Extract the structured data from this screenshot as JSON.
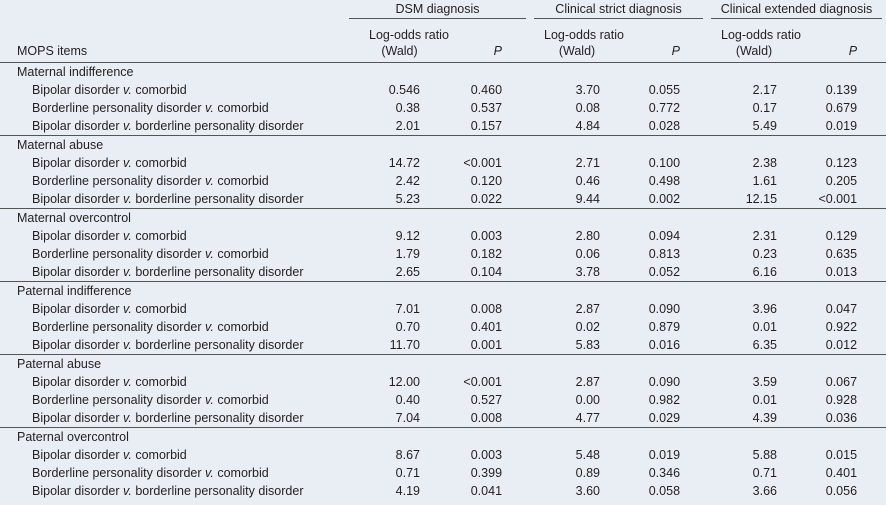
{
  "header": {
    "row_label": "MOPS items",
    "groups": [
      {
        "title": "DSM diagnosis",
        "col1": [
          "Log-odds ratio",
          "(Wald)"
        ],
        "col2": "P"
      },
      {
        "title": "Clinical strict diagnosis",
        "col1": [
          "Log-odds ratio",
          "(Wald)"
        ],
        "col2": "P"
      },
      {
        "title": "Clinical extended diagnosis",
        "col1": [
          "Log-odds ratio",
          "(Wald)"
        ],
        "col2": "P"
      }
    ]
  },
  "sections": [
    {
      "title": "Maternal indifference",
      "rows": [
        {
          "comparison": [
            "Bipolar disorder",
            "v.",
            "comorbid"
          ],
          "values": [
            "0.546",
            "0.460",
            "3.70",
            "0.055",
            "2.17",
            "0.139"
          ]
        },
        {
          "comparison": [
            "Borderline personality disorder",
            "v.",
            "comorbid"
          ],
          "values": [
            "0.38",
            "0.537",
            "0.08",
            "0.772",
            "0.17",
            "0.679"
          ]
        },
        {
          "comparison": [
            "Bipolar disorder",
            "v.",
            "borderline personality disorder"
          ],
          "values": [
            "2.01",
            "0.157",
            "4.84",
            "0.028",
            "5.49",
            "0.019"
          ]
        }
      ]
    },
    {
      "title": "Maternal abuse",
      "rows": [
        {
          "comparison": [
            "Bipolar disorder",
            "v.",
            "comorbid"
          ],
          "values": [
            "14.72",
            "<0.001",
            "2.71",
            "0.100",
            "2.38",
            "0.123"
          ]
        },
        {
          "comparison": [
            "Borderline personality disorder",
            "v.",
            "comorbid"
          ],
          "values": [
            "2.42",
            "0.120",
            "0.46",
            "0.498",
            "1.61",
            "0.205"
          ]
        },
        {
          "comparison": [
            "Bipolar disorder",
            "v.",
            "borderline personality disorder"
          ],
          "values": [
            "5.23",
            "0.022",
            "9.44",
            "0.002",
            "12.15",
            "<0.001"
          ]
        }
      ]
    },
    {
      "title": "Maternal overcontrol",
      "rows": [
        {
          "comparison": [
            "Bipolar disorder",
            "v.",
            "comorbid"
          ],
          "values": [
            "9.12",
            "0.003",
            "2.80",
            "0.094",
            "2.31",
            "0.129"
          ]
        },
        {
          "comparison": [
            "Borderline personality disorder",
            "v.",
            "comorbid"
          ],
          "values": [
            "1.79",
            "0.182",
            "0.06",
            "0.813",
            "0.23",
            "0.635"
          ]
        },
        {
          "comparison": [
            "Bipolar disorder",
            "v.",
            "borderline personality disorder"
          ],
          "values": [
            "2.65",
            "0.104",
            "3.78",
            "0.052",
            "6.16",
            "0.013"
          ]
        }
      ]
    },
    {
      "title": "Paternal indifference",
      "rows": [
        {
          "comparison": [
            "Bipolar disorder",
            "v.",
            "comorbid"
          ],
          "values": [
            "7.01",
            "0.008",
            "2.87",
            "0.090",
            "3.96",
            "0.047"
          ]
        },
        {
          "comparison": [
            "Borderline personality disorder",
            "v.",
            "comorbid"
          ],
          "values": [
            "0.70",
            "0.401",
            "0.02",
            "0.879",
            "0.01",
            "0.922"
          ]
        },
        {
          "comparison": [
            "Bipolar disorder",
            "v.",
            "borderline personality disorder"
          ],
          "values": [
            "11.70",
            "0.001",
            "5.83",
            "0.016",
            "6.35",
            "0.012"
          ]
        }
      ]
    },
    {
      "title": "Paternal abuse",
      "rows": [
        {
          "comparison": [
            "Bipolar disorder",
            "v.",
            "comorbid"
          ],
          "values": [
            "12.00",
            "<0.001",
            "2.87",
            "0.090",
            "3.59",
            "0.067"
          ]
        },
        {
          "comparison": [
            "Borderline personality disorder",
            "v.",
            "comorbid"
          ],
          "values": [
            "0.40",
            "0.527",
            "0.00",
            "0.982",
            "0.01",
            "0.928"
          ]
        },
        {
          "comparison": [
            "Bipolar disorder",
            "v.",
            "borderline personality disorder"
          ],
          "values": [
            "7.04",
            "0.008",
            "4.77",
            "0.029",
            "4.39",
            "0.036"
          ]
        }
      ]
    },
    {
      "title": "Paternal overcontrol",
      "rows": [
        {
          "comparison": [
            "Bipolar disorder",
            "v.",
            "comorbid"
          ],
          "values": [
            "8.67",
            "0.003",
            "5.48",
            "0.019",
            "5.88",
            "0.015"
          ]
        },
        {
          "comparison": [
            "Borderline personality disorder",
            "v.",
            "comorbid"
          ],
          "values": [
            "0.71",
            "0.399",
            "0.89",
            "0.346",
            "0.71",
            "0.401"
          ]
        },
        {
          "comparison": [
            "Bipolar disorder",
            "v.",
            "borderline personality disorder"
          ],
          "values": [
            "4.19",
            "0.041",
            "3.60",
            "0.058",
            "3.66",
            "0.056"
          ]
        }
      ]
    }
  ]
}
